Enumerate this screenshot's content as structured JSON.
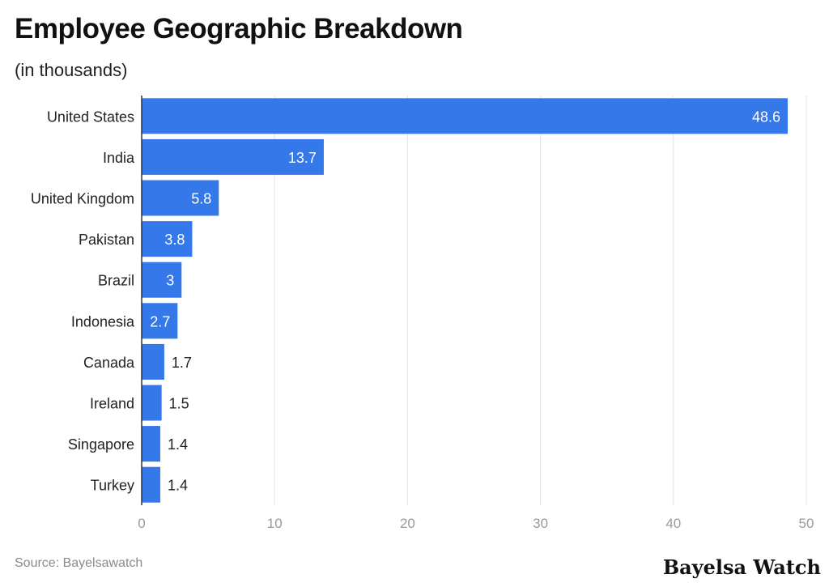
{
  "chart_data": {
    "type": "bar",
    "orientation": "horizontal",
    "title": "Employee Geographic Breakdown",
    "subtitle": "(in thousands)",
    "categories": [
      "United States",
      "India",
      "United Kingdom",
      "Pakistan",
      "Brazil",
      "Indonesia",
      "Canada",
      "Ireland",
      "Singapore",
      "Turkey"
    ],
    "values": [
      48.6,
      13.7,
      5.8,
      3.8,
      3,
      2.7,
      1.7,
      1.5,
      1.4,
      1.4
    ],
    "value_labels": [
      "48.6",
      "13.7",
      "5.8",
      "3.8",
      "3",
      "2.7",
      "1.7",
      "1.5",
      "1.4",
      "1.4"
    ],
    "xlim": [
      0,
      50
    ],
    "xticks": [
      0,
      10,
      20,
      30,
      40,
      50
    ],
    "xtick_labels": [
      "0",
      "10",
      "20",
      "30",
      "40",
      "50"
    ],
    "grid": true,
    "bar_color": "#3478ea"
  },
  "footer": {
    "source": "Source: Bayelsawatch",
    "brand": "Bayelsa Watch"
  }
}
